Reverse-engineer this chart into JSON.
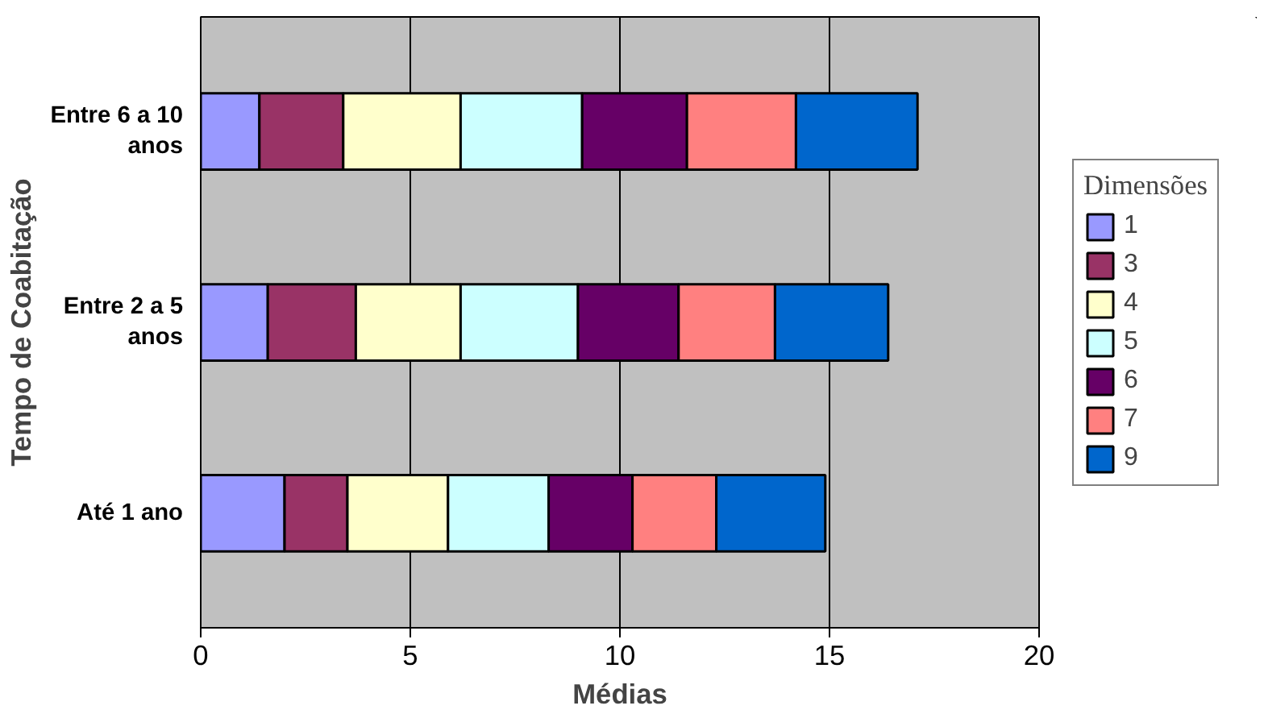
{
  "chart_data": {
    "type": "bar",
    "orientation": "horizontal",
    "stacked": true,
    "categories": [
      "Entre 6 a 10 anos",
      "Entre 2 a 5 anos",
      "Até 1 ano"
    ],
    "series": [
      {
        "name": "1",
        "color": "#9999ff",
        "values": [
          1.4,
          1.6,
          2.0
        ]
      },
      {
        "name": "3",
        "color": "#993366",
        "values": [
          2.0,
          2.1,
          1.5
        ]
      },
      {
        "name": "4",
        "color": "#ffffcc",
        "values": [
          2.8,
          2.5,
          2.4
        ]
      },
      {
        "name": "5",
        "color": "#ccffff",
        "values": [
          2.9,
          2.8,
          2.4
        ]
      },
      {
        "name": "6",
        "color": "#660066",
        "values": [
          2.5,
          2.4,
          2.0
        ]
      },
      {
        "name": "7",
        "color": "#ff8080",
        "values": [
          2.6,
          2.3,
          2.0
        ]
      },
      {
        "name": "9",
        "color": "#0066cc",
        "values": [
          2.9,
          2.7,
          2.6
        ]
      }
    ],
    "xlim": [
      0,
      20
    ],
    "xticks": [
      0,
      5,
      10,
      15,
      20
    ],
    "grid": "x",
    "xlabel": "Médias",
    "ylabel": "Tempo de Coabitação",
    "legend_title": "Dimensões",
    "legend": "right"
  }
}
